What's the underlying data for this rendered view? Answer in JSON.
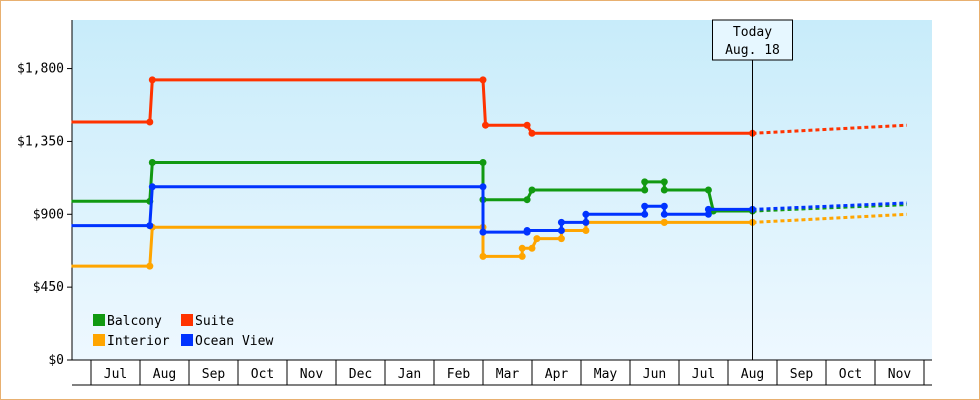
{
  "chart_data": {
    "type": "line",
    "currency": "$",
    "y_ticks": [
      0,
      450,
      900,
      1350,
      1800
    ],
    "y_tick_labels": [
      "$0",
      "$450",
      "$900",
      "$1,350",
      "$1,800"
    ],
    "ylim": [
      0,
      2100
    ],
    "months": [
      "Jul",
      "Aug",
      "Sep",
      "Oct",
      "Nov",
      "Dec",
      "Jan",
      "Feb",
      "Mar",
      "Apr",
      "May",
      "Jun",
      "Jul",
      "Aug",
      "Sep",
      "Oct",
      "Nov"
    ],
    "x_range_months": [
      -0.4,
      16.65
    ],
    "grid": false,
    "legend_position": "bottom-left",
    "today": {
      "label": "Today",
      "date": "Aug. 18",
      "month_index": 13.5
    },
    "series": [
      {
        "name": "Balcony",
        "color": "#119911",
        "points": [
          [
            -0.4,
            980
          ],
          [
            1.2,
            980
          ],
          [
            1.25,
            1220
          ],
          [
            8.0,
            1220
          ],
          [
            8.0,
            990
          ],
          [
            8.9,
            990
          ],
          [
            9.0,
            1050
          ],
          [
            11.3,
            1050
          ],
          [
            11.3,
            1100
          ],
          [
            11.7,
            1100
          ],
          [
            11.7,
            1050
          ],
          [
            12.6,
            1050
          ],
          [
            12.7,
            920
          ],
          [
            13.5,
            920
          ]
        ],
        "forecast": [
          [
            13.5,
            920
          ],
          [
            16.65,
            960
          ]
        ]
      },
      {
        "name": "Suite",
        "color": "#ff3300",
        "points": [
          [
            -0.4,
            1470
          ],
          [
            1.2,
            1470
          ],
          [
            1.25,
            1730
          ],
          [
            8.0,
            1730
          ],
          [
            8.05,
            1450
          ],
          [
            8.9,
            1450
          ],
          [
            9.0,
            1400
          ],
          [
            13.5,
            1400
          ]
        ],
        "forecast": [
          [
            13.5,
            1400
          ],
          [
            16.65,
            1450
          ]
        ]
      },
      {
        "name": "Interior",
        "color": "#ffa500",
        "points": [
          [
            -0.4,
            580
          ],
          [
            1.2,
            580
          ],
          [
            1.25,
            820
          ],
          [
            8.0,
            820
          ],
          [
            8.0,
            640
          ],
          [
            8.8,
            640
          ],
          [
            8.8,
            690
          ],
          [
            9.0,
            690
          ],
          [
            9.1,
            750
          ],
          [
            9.6,
            750
          ],
          [
            9.6,
            800
          ],
          [
            10.1,
            800
          ],
          [
            10.1,
            850
          ],
          [
            11.7,
            850
          ],
          [
            11.7,
            850
          ],
          [
            13.5,
            850
          ]
        ],
        "forecast": [
          [
            13.5,
            850
          ],
          [
            16.65,
            900
          ]
        ]
      },
      {
        "name": "Ocean View",
        "color": "#0033ff",
        "points": [
          [
            -0.4,
            830
          ],
          [
            1.2,
            830
          ],
          [
            1.25,
            1070
          ],
          [
            8.0,
            1070
          ],
          [
            8.0,
            790
          ],
          [
            8.9,
            790
          ],
          [
            8.9,
            800
          ],
          [
            9.6,
            800
          ],
          [
            9.6,
            850
          ],
          [
            10.1,
            850
          ],
          [
            10.1,
            900
          ],
          [
            11.3,
            900
          ],
          [
            11.3,
            950
          ],
          [
            11.7,
            950
          ],
          [
            11.7,
            900
          ],
          [
            12.6,
            900
          ],
          [
            12.6,
            930
          ],
          [
            13.5,
            930
          ]
        ],
        "forecast": [
          [
            13.5,
            930
          ],
          [
            16.65,
            970
          ]
        ]
      }
    ],
    "legend": [
      {
        "name": "Balcony",
        "color": "#119911"
      },
      {
        "name": "Suite",
        "color": "#ff3300"
      },
      {
        "name": "Interior",
        "color": "#ffa500"
      },
      {
        "name": "Ocean View",
        "color": "#0033ff"
      }
    ],
    "background_gradient": [
      "#c8ecfa",
      "#eef8ff"
    ]
  }
}
